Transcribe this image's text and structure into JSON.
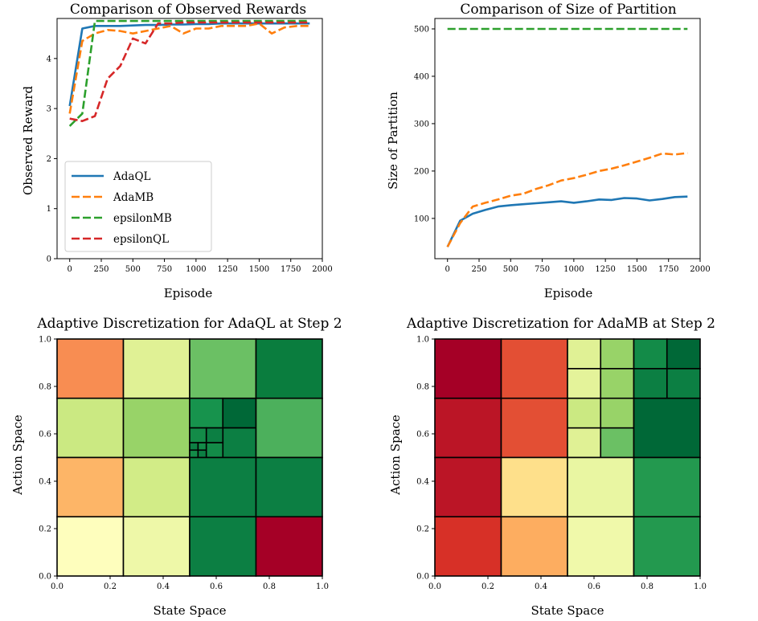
{
  "chart_data": [
    {
      "type": "line",
      "title": "Comparison of Observed Rewards",
      "xlabel": "Episode",
      "ylabel": "Observed Reward",
      "xlim": [
        -100,
        2000
      ],
      "ylim": [
        0,
        4.8
      ],
      "xticks": [
        "0",
        "250",
        "500",
        "750",
        "1000",
        "1250",
        "1500",
        "1750",
        "2000"
      ],
      "yticks": [
        "0",
        "1",
        "2",
        "3",
        "4"
      ],
      "legend_position": "lower-left",
      "x": [
        0,
        100,
        200,
        300,
        400,
        500,
        600,
        700,
        800,
        900,
        1000,
        1100,
        1200,
        1300,
        1400,
        1500,
        1600,
        1700,
        1800,
        1900
      ],
      "series": [
        {
          "name": "AdaQL",
          "color": "#1f77b4",
          "style": "solid",
          "values": [
            3.05,
            4.6,
            4.65,
            4.65,
            4.65,
            4.66,
            4.67,
            4.67,
            4.68,
            4.68,
            4.69,
            4.69,
            4.7,
            4.7,
            4.7,
            4.7,
            4.7,
            4.7,
            4.7,
            4.7
          ]
        },
        {
          "name": "AdaMB",
          "color": "#ff7f0e",
          "style": "dashed",
          "values": [
            2.9,
            4.35,
            4.5,
            4.57,
            4.55,
            4.5,
            4.55,
            4.6,
            4.65,
            4.5,
            4.6,
            4.6,
            4.65,
            4.65,
            4.65,
            4.7,
            4.5,
            4.62,
            4.65,
            4.65
          ]
        },
        {
          "name": "epsilonMB",
          "color": "#2ca02c",
          "style": "dashed",
          "values": [
            2.65,
            2.9,
            4.75,
            4.75,
            4.75,
            4.75,
            4.75,
            4.75,
            4.75,
            4.75,
            4.75,
            4.75,
            4.75,
            4.75,
            4.75,
            4.75,
            4.75,
            4.75,
            4.75,
            4.75
          ]
        },
        {
          "name": "epsilonQL",
          "color": "#d62728",
          "style": "dashed",
          "values": [
            2.8,
            2.75,
            2.85,
            3.6,
            3.85,
            4.4,
            4.3,
            4.7,
            4.7,
            4.72,
            4.72,
            4.72,
            4.72,
            4.72,
            4.72,
            4.72,
            4.72,
            4.72,
            4.72,
            4.72
          ]
        }
      ]
    },
    {
      "type": "line",
      "title": "Comparison of Size of Partition",
      "xlabel": "Episode",
      "ylabel": "Size of Partition",
      "xlim": [
        -100,
        2000
      ],
      "ylim": [
        15,
        522
      ],
      "xticks": [
        "0",
        "250",
        "500",
        "750",
        "1000",
        "1250",
        "1500",
        "1750",
        "2000"
      ],
      "yticks": [
        "100",
        "200",
        "300",
        "400",
        "500"
      ],
      "x": [
        0,
        100,
        200,
        300,
        400,
        500,
        600,
        700,
        800,
        900,
        1000,
        1100,
        1200,
        1300,
        1400,
        1500,
        1600,
        1700,
        1800,
        1900
      ],
      "series": [
        {
          "name": "AdaQL",
          "color": "#1f77b4",
          "style": "solid",
          "values": [
            40,
            95,
            110,
            118,
            125,
            128,
            130,
            132,
            134,
            136,
            133,
            136,
            140,
            139,
            143,
            142,
            138,
            141,
            145,
            146
          ]
        },
        {
          "name": "AdaMB",
          "color": "#ff7f0e",
          "style": "dashed",
          "values": [
            40,
            90,
            125,
            133,
            140,
            148,
            152,
            162,
            170,
            180,
            185,
            192,
            200,
            205,
            212,
            220,
            228,
            237,
            235,
            238
          ]
        },
        {
          "name": "epsilonMB",
          "color": "#2ca02c",
          "style": "dashed",
          "values": [
            500,
            500,
            500,
            500,
            500,
            500,
            500,
            500,
            500,
            500,
            500,
            500,
            500,
            500,
            500,
            500,
            500,
            500,
            500,
            500
          ]
        }
      ]
    },
    {
      "type": "heatmap",
      "title": "Adaptive Discretization for AdaQL at Step 2",
      "xlabel": "State Space",
      "ylabel": "Action Space",
      "xlim": [
        0,
        1
      ],
      "ylim": [
        0,
        1
      ],
      "xticks": [
        "0.0",
        "0.2",
        "0.4",
        "0.6",
        "0.8",
        "1.0"
      ],
      "yticks": [
        "0.0",
        "0.2",
        "0.4",
        "0.6",
        "0.8",
        "1.0"
      ],
      "cells": [
        {
          "x0": 0,
          "y0": 0.75,
          "w": 0.25,
          "h": 0.25,
          "color": "#f88d52"
        },
        {
          "x0": 0.25,
          "y0": 0.75,
          "w": 0.25,
          "h": 0.25,
          "color": "#e0f195"
        },
        {
          "x0": 0.5,
          "y0": 0.75,
          "w": 0.25,
          "h": 0.25,
          "color": "#6bc064"
        },
        {
          "x0": 0.75,
          "y0": 0.75,
          "w": 0.25,
          "h": 0.25,
          "color": "#0a7d3e"
        },
        {
          "x0": 0,
          "y0": 0.5,
          "w": 0.25,
          "h": 0.25,
          "color": "#cbe982"
        },
        {
          "x0": 0.25,
          "y0": 0.5,
          "w": 0.25,
          "h": 0.25,
          "color": "#98d368"
        },
        {
          "x0": 0.5,
          "y0": 0.625,
          "w": 0.125,
          "h": 0.125,
          "color": "#17934d"
        },
        {
          "x0": 0.625,
          "y0": 0.625,
          "w": 0.125,
          "h": 0.125,
          "color": "#006837"
        },
        {
          "x0": 0.625,
          "y0": 0.5,
          "w": 0.125,
          "h": 0.125,
          "color": "#0c7f43"
        },
        {
          "x0": 0.5625,
          "y0": 0.5625,
          "w": 0.0625,
          "h": 0.0625,
          "color": "#0c7f43"
        },
        {
          "x0": 0.5,
          "y0": 0.5625,
          "w": 0.0625,
          "h": 0.0625,
          "color": "#138b48"
        },
        {
          "x0": 0.5625,
          "y0": 0.5,
          "w": 0.0625,
          "h": 0.0625,
          "color": "#138b48"
        },
        {
          "x0": 0.53125,
          "y0": 0.53125,
          "w": 0.03125,
          "h": 0.03125,
          "color": "#138b48"
        },
        {
          "x0": 0.5,
          "y0": 0.53125,
          "w": 0.03125,
          "h": 0.03125,
          "color": "#0c7f43"
        },
        {
          "x0": 0.53125,
          "y0": 0.5,
          "w": 0.03125,
          "h": 0.03125,
          "color": "#0c7f43"
        },
        {
          "x0": 0.5,
          "y0": 0.5,
          "w": 0.03125,
          "h": 0.03125,
          "color": "#138b48"
        },
        {
          "x0": 0.75,
          "y0": 0.5,
          "w": 0.25,
          "h": 0.25,
          "color": "#4cb05c"
        },
        {
          "x0": 0,
          "y0": 0.25,
          "w": 0.25,
          "h": 0.25,
          "color": "#fdb567"
        },
        {
          "x0": 0.25,
          "y0": 0.25,
          "w": 0.25,
          "h": 0.25,
          "color": "#d2ec87"
        },
        {
          "x0": 0.5,
          "y0": 0.25,
          "w": 0.25,
          "h": 0.25,
          "color": "#0c7f43"
        },
        {
          "x0": 0.75,
          "y0": 0.25,
          "w": 0.25,
          "h": 0.25,
          "color": "#0c7f43"
        },
        {
          "x0": 0,
          "y0": 0,
          "w": 0.25,
          "h": 0.25,
          "color": "#fefebd"
        },
        {
          "x0": 0.25,
          "y0": 0,
          "w": 0.25,
          "h": 0.25,
          "color": "#eef8a8"
        },
        {
          "x0": 0.5,
          "y0": 0,
          "w": 0.25,
          "h": 0.25,
          "color": "#0c7f43"
        },
        {
          "x0": 0.75,
          "y0": 0,
          "w": 0.25,
          "h": 0.25,
          "color": "#a50026"
        }
      ]
    },
    {
      "type": "heatmap",
      "title": "Adaptive Discretization for AdaMB at Step 2",
      "xlabel": "State Space",
      "ylabel": "Action Space",
      "xlim": [
        0,
        1
      ],
      "ylim": [
        0,
        1
      ],
      "xticks": [
        "0.0",
        "0.2",
        "0.4",
        "0.6",
        "0.8",
        "1.0"
      ],
      "yticks": [
        "0.0",
        "0.2",
        "0.4",
        "0.6",
        "0.8",
        "1.0"
      ],
      "cells": [
        {
          "x0": 0,
          "y0": 0.75,
          "w": 0.25,
          "h": 0.25,
          "color": "#a50026"
        },
        {
          "x0": 0.25,
          "y0": 0.75,
          "w": 0.25,
          "h": 0.25,
          "color": "#e34f34"
        },
        {
          "x0": 0.5,
          "y0": 0.875,
          "w": 0.125,
          "h": 0.125,
          "color": "#e0f195"
        },
        {
          "x0": 0.625,
          "y0": 0.875,
          "w": 0.125,
          "h": 0.125,
          "color": "#98d368"
        },
        {
          "x0": 0.5,
          "y0": 0.75,
          "w": 0.125,
          "h": 0.125,
          "color": "#e4f39a"
        },
        {
          "x0": 0.625,
          "y0": 0.75,
          "w": 0.125,
          "h": 0.125,
          "color": "#98d368"
        },
        {
          "x0": 0.75,
          "y0": 0.875,
          "w": 0.125,
          "h": 0.125,
          "color": "#138b48"
        },
        {
          "x0": 0.875,
          "y0": 0.875,
          "w": 0.125,
          "h": 0.125,
          "color": "#006837"
        },
        {
          "x0": 0.875,
          "y0": 0.75,
          "w": 0.125,
          "h": 0.125,
          "color": "#0c7f43"
        },
        {
          "x0": 0.75,
          "y0": 0.75,
          "w": 0.125,
          "h": 0.125,
          "color": "#0c7f43"
        },
        {
          "x0": 0,
          "y0": 0.5,
          "w": 0.25,
          "h": 0.25,
          "color": "#bb1526"
        },
        {
          "x0": 0.25,
          "y0": 0.5,
          "w": 0.25,
          "h": 0.25,
          "color": "#e34f34"
        },
        {
          "x0": 0.5,
          "y0": 0.5,
          "w": 0.125,
          "h": 0.125,
          "color": "#e0f195"
        },
        {
          "x0": 0.625,
          "y0": 0.5,
          "w": 0.125,
          "h": 0.125,
          "color": "#6bc064"
        },
        {
          "x0": 0.5,
          "y0": 0.625,
          "w": 0.125,
          "h": 0.125,
          "color": "#cbe982"
        },
        {
          "x0": 0.625,
          "y0": 0.625,
          "w": 0.125,
          "h": 0.125,
          "color": "#98d368"
        },
        {
          "x0": 0.75,
          "y0": 0.5,
          "w": 0.25,
          "h": 0.25,
          "color": "#006837"
        },
        {
          "x0": 0,
          "y0": 0.25,
          "w": 0.25,
          "h": 0.25,
          "color": "#bb1526"
        },
        {
          "x0": 0.25,
          "y0": 0.25,
          "w": 0.25,
          "h": 0.25,
          "color": "#fee08b"
        },
        {
          "x0": 0.5,
          "y0": 0.25,
          "w": 0.25,
          "h": 0.25,
          "color": "#e9f6a2"
        },
        {
          "x0": 0.75,
          "y0": 0.25,
          "w": 0.25,
          "h": 0.25,
          "color": "#23994f"
        },
        {
          "x0": 0,
          "y0": 0,
          "w": 0.25,
          "h": 0.25,
          "color": "#d73027"
        },
        {
          "x0": 0.25,
          "y0": 0,
          "w": 0.25,
          "h": 0.25,
          "color": "#fdad60"
        },
        {
          "x0": 0.5,
          "y0": 0,
          "w": 0.25,
          "h": 0.25,
          "color": "#f0f9aa"
        },
        {
          "x0": 0.75,
          "y0": 0,
          "w": 0.25,
          "h": 0.25,
          "color": "#23994f"
        }
      ]
    }
  ]
}
